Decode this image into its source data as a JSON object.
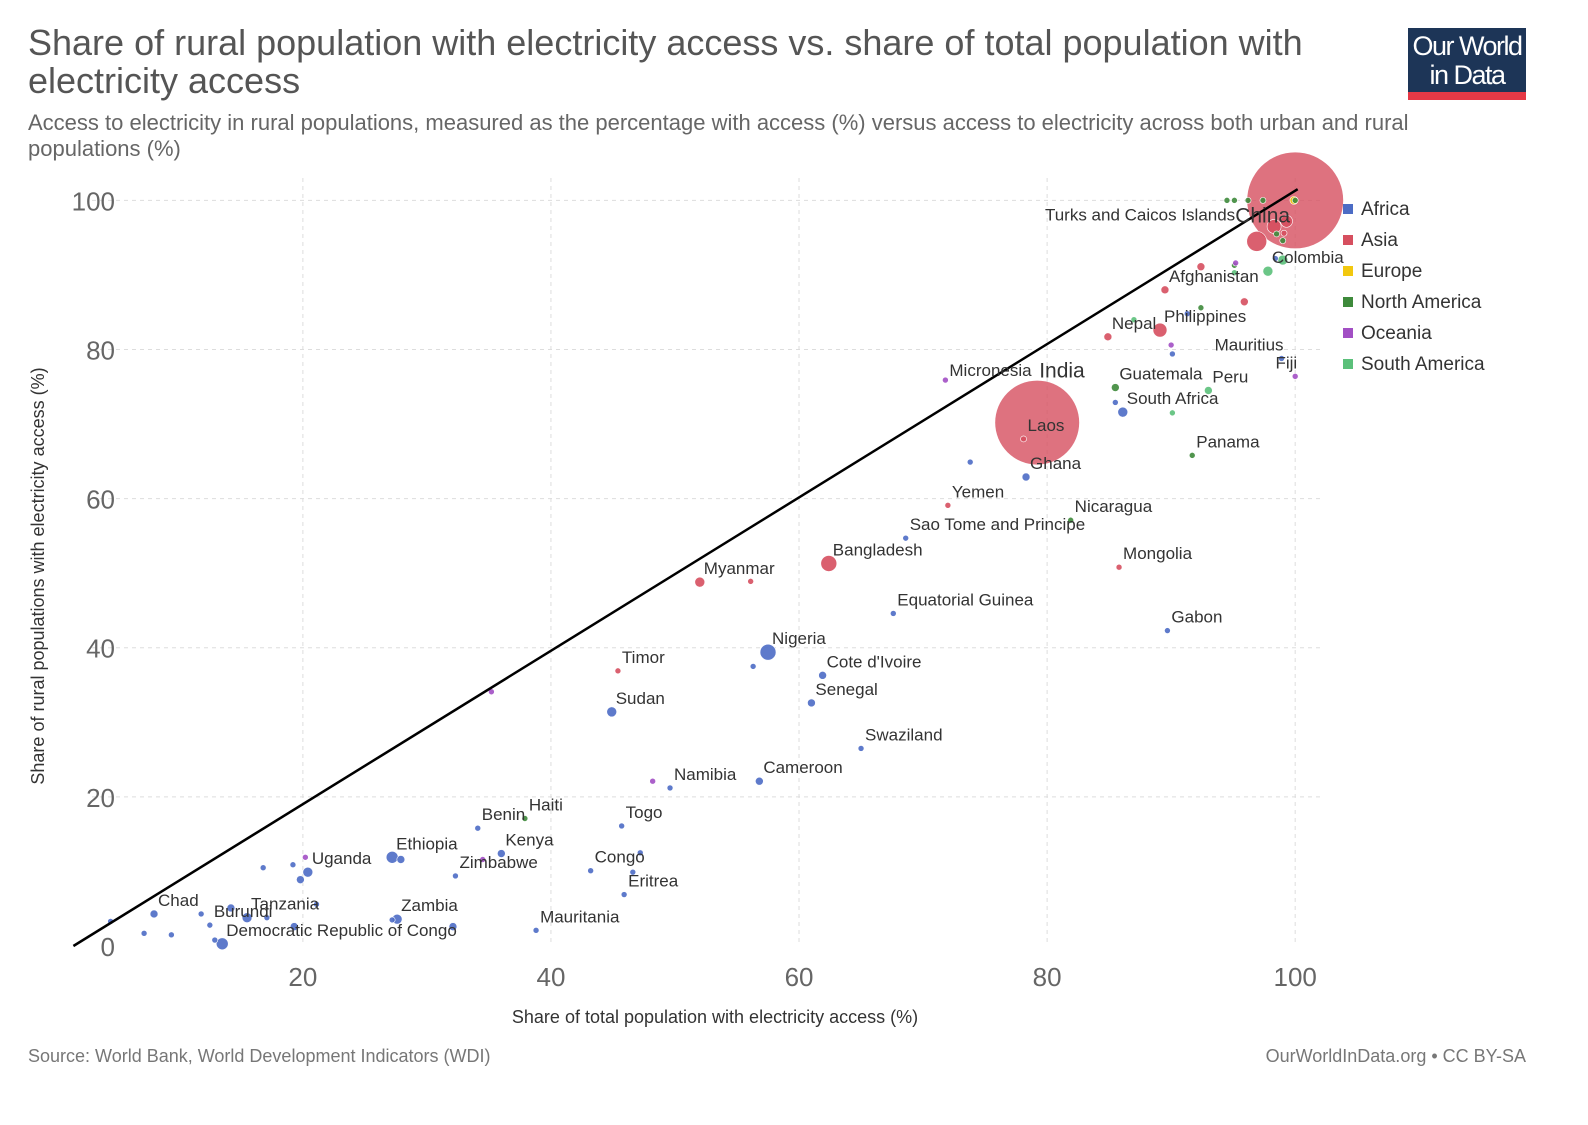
{
  "header": {
    "title": "Share of rural population with electricity access vs. share of total population with electricity access",
    "subtitle": "Access to electricity in rural populations, measured as the percentage with access (%) versus access to electricity across both urban and rural populations (%)",
    "logo_line1": "Our World",
    "logo_line2": "in Data"
  },
  "footer": {
    "source": "Source: World Bank, World Development Indicators (WDI)",
    "credit": "OurWorldInData.org • CC BY-SA"
  },
  "colors": {
    "Africa": "#4c6cc5",
    "Asia": "#d64f5f",
    "Europe": "#f2c80f",
    "North America": "#3e8a3b",
    "Oceania": "#a24fc4",
    "South America": "#5bc07a"
  },
  "chart_data": {
    "type": "scatter",
    "xlabel": "Share of total population with electricity access (%)",
    "ylabel": "Share of rural populations with electricity access (%)",
    "xlim": [
      3,
      102
    ],
    "ylim": [
      0,
      103
    ],
    "xticks": [
      20,
      40,
      60,
      80,
      100
    ],
    "yticks": [
      0,
      20,
      40,
      60,
      80,
      100
    ],
    "grid": true,
    "legend_position": "right",
    "legend": [
      "Africa",
      "Asia",
      "Europe",
      "North America",
      "Oceania",
      "South America"
    ],
    "reference_line": [
      [
        1.5,
        0
      ],
      [
        100.2,
        101.5
      ]
    ],
    "points": [
      {
        "label": "China",
        "region": "Asia",
        "x": 100,
        "y": 100,
        "size": 48
      },
      {
        "label": "India",
        "region": "Asia",
        "x": 79.2,
        "y": 70.2,
        "size": 42
      },
      {
        "label": "Turks and Caicos Islands",
        "region": "North America",
        "x": 100,
        "y": 100,
        "size": 3
      },
      {
        "label": "Colombia",
        "region": "South America",
        "x": 97.8,
        "y": 90.5,
        "size": 5
      },
      {
        "label": "Afghanistan",
        "region": "Asia",
        "x": 89.5,
        "y": 88,
        "size": 4
      },
      {
        "label": "Philippines",
        "region": "Asia",
        "x": 89.1,
        "y": 82.6,
        "size": 7
      },
      {
        "label": "Nepal",
        "region": "Asia",
        "x": 84.9,
        "y": 81.7,
        "size": 4
      },
      {
        "label": "Mauritius",
        "region": "Africa",
        "x": 98.9,
        "y": 78.8,
        "size": 3
      },
      {
        "label": "Fiji",
        "region": "Oceania",
        "x": 100,
        "y": 76.4,
        "size": 3
      },
      {
        "label": "Micronesia",
        "region": "Oceania",
        "x": 71.8,
        "y": 75.9,
        "size": 3
      },
      {
        "label": "Guatemala",
        "region": "North America",
        "x": 85.5,
        "y": 74.9,
        "size": 4
      },
      {
        "label": "Peru",
        "region": "South America",
        "x": 93,
        "y": 74.5,
        "size": 4
      },
      {
        "label": "South Africa",
        "region": "Africa",
        "x": 86.1,
        "y": 71.6,
        "size": 5
      },
      {
        "label": "Laos",
        "region": "Asia",
        "x": 78.1,
        "y": 68,
        "size": 3
      },
      {
        "label": "Panama",
        "region": "North America",
        "x": 91.7,
        "y": 65.8,
        "size": 3
      },
      {
        "label": "Ghana",
        "region": "Africa",
        "x": 78.3,
        "y": 62.9,
        "size": 4
      },
      {
        "label": "Yemen",
        "region": "Asia",
        "x": 72,
        "y": 59.1,
        "size": 3
      },
      {
        "label": "Nicaragua",
        "region": "North America",
        "x": 81.9,
        "y": 57.1,
        "size": 3
      },
      {
        "label": "Sao Tome and Principe",
        "region": "Africa",
        "x": 68.6,
        "y": 54.7,
        "size": 3
      },
      {
        "label": "Bangladesh",
        "region": "Asia",
        "x": 62.4,
        "y": 51.3,
        "size": 8
      },
      {
        "label": "Mongolia",
        "region": "Asia",
        "x": 85.8,
        "y": 50.8,
        "size": 3
      },
      {
        "label": "Myanmar",
        "region": "Asia",
        "x": 52,
        "y": 48.8,
        "size": 5
      },
      {
        "label": "Equatorial Guinea",
        "region": "Africa",
        "x": 67.6,
        "y": 44.6,
        "size": 3
      },
      {
        "label": "Gabon",
        "region": "Africa",
        "x": 89.7,
        "y": 42.3,
        "size": 3
      },
      {
        "label": "Nigeria",
        "region": "Africa",
        "x": 57.5,
        "y": 39.4,
        "size": 8
      },
      {
        "label": "Timor",
        "region": "Asia",
        "x": 45.4,
        "y": 36.9,
        "size": 3
      },
      {
        "label": "Cote d'Ivoire",
        "region": "Africa",
        "x": 61.9,
        "y": 36.3,
        "size": 4
      },
      {
        "label": "Senegal",
        "region": "Africa",
        "x": 61,
        "y": 32.6,
        "size": 4
      },
      {
        "label": "Sudan",
        "region": "Africa",
        "x": 44.9,
        "y": 31.4,
        "size": 5
      },
      {
        "label": "Swaziland",
        "region": "Africa",
        "x": 65,
        "y": 26.5,
        "size": 3
      },
      {
        "label": "Namibia",
        "region": "Africa",
        "x": 49.6,
        "y": 21.2,
        "size": 3
      },
      {
        "label": "Cameroon",
        "region": "Africa",
        "x": 56.8,
        "y": 22.1,
        "size": 4
      },
      {
        "label": "Haiti",
        "region": "North America",
        "x": 37.9,
        "y": 17.1,
        "size": 3
      },
      {
        "label": "Benin",
        "region": "Africa",
        "x": 34.1,
        "y": 15.8,
        "size": 3
      },
      {
        "label": "Togo",
        "region": "Africa",
        "x": 45.7,
        "y": 16.1,
        "size": 3
      },
      {
        "label": "Ethiopia",
        "region": "Africa",
        "x": 27.2,
        "y": 11.9,
        "size": 6
      },
      {
        "label": "Kenya",
        "region": "Africa",
        "x": 36,
        "y": 12.4,
        "size": 4
      },
      {
        "label": "Uganda",
        "region": "Africa",
        "x": 20.4,
        "y": 9.9,
        "size": 5
      },
      {
        "label": "Zimbabwe",
        "region": "Africa",
        "x": 32.3,
        "y": 9.4,
        "size": 3
      },
      {
        "label": "Congo",
        "region": "Africa",
        "x": 43.2,
        "y": 10.1,
        "size": 3
      },
      {
        "label": "Eritrea",
        "region": "Africa",
        "x": 45.9,
        "y": 6.9,
        "size": 3
      },
      {
        "label": "Chad",
        "region": "Africa",
        "x": 8,
        "y": 4.3,
        "size": 4
      },
      {
        "label": "Tanzania",
        "region": "Africa",
        "x": 15.5,
        "y": 3.8,
        "size": 5
      },
      {
        "label": "Zambia",
        "region": "Africa",
        "x": 27.6,
        "y": 3.6,
        "size": 5
      },
      {
        "label": "Burundi",
        "region": "Africa",
        "x": 12.5,
        "y": 2.8,
        "size": 3
      },
      {
        "label": "Democratic Republic of Congo",
        "region": "Africa",
        "x": 13.5,
        "y": 0.3,
        "size": 6
      },
      {
        "label": "Mauritania",
        "region": "Africa",
        "x": 38.8,
        "y": 2.1,
        "size": 3
      },
      {
        "region": "Asia",
        "x": 96.9,
        "y": 94.5,
        "size": 10
      },
      {
        "region": "Asia",
        "x": 98.3,
        "y": 96.5,
        "size": 7
      },
      {
        "region": "Asia",
        "x": 99.3,
        "y": 97.2,
        "size": 6
      },
      {
        "region": "Asia",
        "x": 92.4,
        "y": 91.1,
        "size": 4
      },
      {
        "region": "Asia",
        "x": 95.9,
        "y": 86.4,
        "size": 4
      },
      {
        "region": "Asia",
        "x": 56.1,
        "y": 48.9,
        "size": 3
      },
      {
        "region": "Asia",
        "x": 99.1,
        "y": 95.6,
        "size": 3
      },
      {
        "region": "Europe",
        "x": 99.9,
        "y": 100,
        "size": 4
      },
      {
        "region": "North America",
        "x": 94.5,
        "y": 100,
        "size": 3
      },
      {
        "region": "North America",
        "x": 95.1,
        "y": 100,
        "size": 3
      },
      {
        "region": "North America",
        "x": 96.2,
        "y": 100,
        "size": 3
      },
      {
        "region": "North America",
        "x": 97.4,
        "y": 100,
        "size": 3
      },
      {
        "region": "North America",
        "x": 98.5,
        "y": 95.5,
        "size": 3
      },
      {
        "region": "North America",
        "x": 99,
        "y": 94.6,
        "size": 3
      },
      {
        "region": "North America",
        "x": 92.4,
        "y": 85.6,
        "size": 3
      },
      {
        "region": "North America",
        "x": 95.1,
        "y": 91.3,
        "size": 3
      },
      {
        "region": "South America",
        "x": 99,
        "y": 92,
        "size": 5
      },
      {
        "region": "South America",
        "x": 95.1,
        "y": 90.3,
        "size": 3
      },
      {
        "region": "South America",
        "x": 87,
        "y": 84,
        "size": 3
      },
      {
        "region": "South America",
        "x": 90.1,
        "y": 71.5,
        "size": 3
      },
      {
        "region": "Oceania",
        "x": 90,
        "y": 80.6,
        "size": 3
      },
      {
        "region": "Oceania",
        "x": 20.2,
        "y": 11.9,
        "size": 3
      },
      {
        "region": "Oceania",
        "x": 35.2,
        "y": 34.1,
        "size": 3
      },
      {
        "region": "Oceania",
        "x": 48.2,
        "y": 22.1,
        "size": 3
      },
      {
        "region": "Oceania",
        "x": 34.5,
        "y": 11.6,
        "size": 3
      },
      {
        "region": "Oceania",
        "x": 95.2,
        "y": 91.6,
        "size": 3
      },
      {
        "region": "Africa",
        "x": 98.4,
        "y": 92.2,
        "size": 3
      },
      {
        "region": "Africa",
        "x": 90.1,
        "y": 79.4,
        "size": 3
      },
      {
        "region": "Africa",
        "x": 85.5,
        "y": 72.9,
        "size": 3
      },
      {
        "region": "Africa",
        "x": 73.8,
        "y": 64.9,
        "size": 3
      },
      {
        "region": "Africa",
        "x": 56.3,
        "y": 37.5,
        "size": 3
      },
      {
        "region": "Africa",
        "x": 91.3,
        "y": 84.8,
        "size": 3
      },
      {
        "region": "Africa",
        "x": 4.5,
        "y": 3.3,
        "size": 3
      },
      {
        "region": "Africa",
        "x": 7.2,
        "y": 1.7,
        "size": 3
      },
      {
        "region": "Africa",
        "x": 9.4,
        "y": 1.5,
        "size": 3
      },
      {
        "region": "Africa",
        "x": 11.8,
        "y": 4.3,
        "size": 3
      },
      {
        "region": "Africa",
        "x": 14.2,
        "y": 5.1,
        "size": 4
      },
      {
        "region": "Africa",
        "x": 17.1,
        "y": 3.8,
        "size": 3
      },
      {
        "region": "Africa",
        "x": 16.8,
        "y": 10.5,
        "size": 3
      },
      {
        "region": "Africa",
        "x": 19.2,
        "y": 10.9,
        "size": 3
      },
      {
        "region": "Africa",
        "x": 19.8,
        "y": 8.9,
        "size": 4
      },
      {
        "region": "Africa",
        "x": 19.3,
        "y": 2.6,
        "size": 4
      },
      {
        "region": "Africa",
        "x": 21.1,
        "y": 5.6,
        "size": 3
      },
      {
        "region": "Africa",
        "x": 12.9,
        "y": 0.8,
        "size": 3
      },
      {
        "region": "Africa",
        "x": 27.9,
        "y": 11.6,
        "size": 4
      },
      {
        "region": "Africa",
        "x": 27.2,
        "y": 3.5,
        "size": 3
      },
      {
        "region": "Africa",
        "x": 32.1,
        "y": 2.6,
        "size": 4
      },
      {
        "region": "Africa",
        "x": 46.6,
        "y": 9.9,
        "size": 3
      },
      {
        "region": "Africa",
        "x": 47.2,
        "y": 12.5,
        "size": 3
      }
    ]
  }
}
